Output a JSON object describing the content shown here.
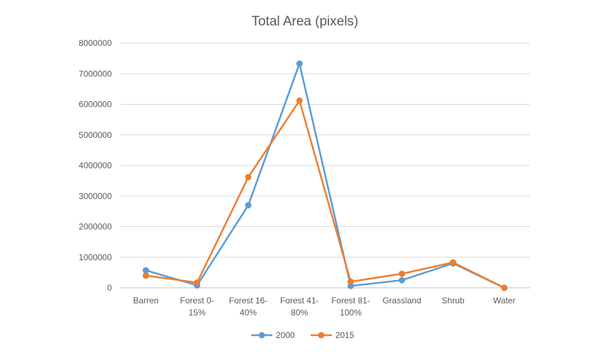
{
  "chart_data": {
    "type": "line",
    "title": "Total Area (pixels)",
    "xlabel": "",
    "ylabel": "",
    "categories": [
      [
        "Barren"
      ],
      [
        "Forest 0-",
        "15%"
      ],
      [
        "Forest 16-",
        "40%"
      ],
      [
        "Forest 41-",
        "80%"
      ],
      [
        "Forest 81-",
        "100%"
      ],
      [
        "Grassland"
      ],
      [
        "Shrub"
      ],
      [
        "Water"
      ]
    ],
    "ylim": [
      0,
      8000000
    ],
    "yticks": [
      "0",
      "1000000",
      "2000000",
      "3000000",
      "4000000",
      "5000000",
      "6000000",
      "7000000",
      "8000000"
    ],
    "grid": true,
    "legend_position": "bottom",
    "series": [
      {
        "name": "2000",
        "color": "#5b9bd5",
        "values": [
          570000,
          80000,
          2700000,
          7330000,
          60000,
          250000,
          800000,
          0
        ]
      },
      {
        "name": "2015",
        "color": "#ed7d31",
        "values": [
          400000,
          170000,
          3620000,
          6120000,
          200000,
          460000,
          830000,
          0
        ]
      }
    ]
  }
}
